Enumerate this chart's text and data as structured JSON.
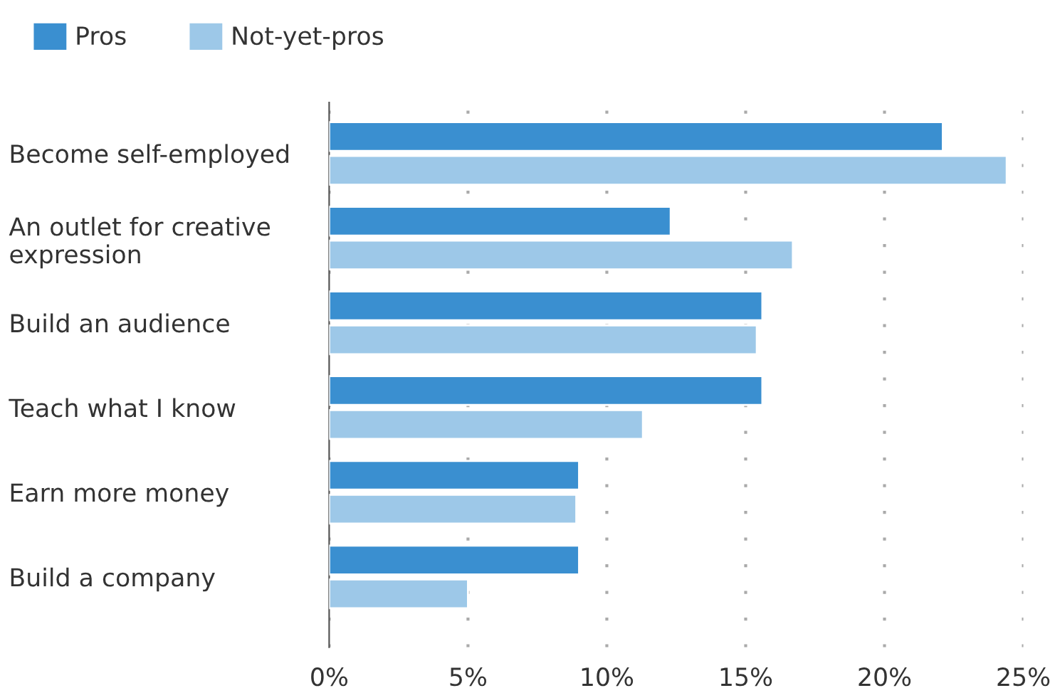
{
  "chart_data": {
    "type": "bar",
    "orientation": "horizontal",
    "categories": [
      "Become self-employed",
      "An outlet for creative\nexpression",
      "Build an audience",
      "Teach what I know",
      "Earn more money",
      "Build a company"
    ],
    "series": [
      {
        "name": "Pros",
        "color": "#3a8fd0",
        "values": [
          22.1,
          12.3,
          15.6,
          15.6,
          9.0,
          9.0
        ]
      },
      {
        "name": "Not-yet-pros",
        "color": "#9dc8e8",
        "values": [
          24.4,
          16.7,
          15.4,
          11.3,
          8.9,
          5.0
        ]
      }
    ],
    "xlim": [
      0,
      25
    ],
    "xticks": [
      {
        "value": 0,
        "label": "0%"
      },
      {
        "value": 5,
        "label": "5%"
      },
      {
        "value": 10,
        "label": "10%"
      },
      {
        "value": 15,
        "label": "15%"
      },
      {
        "value": 20,
        "label": "20%"
      },
      {
        "value": 25,
        "label": "25%"
      }
    ],
    "grid": "x",
    "legend": "top left"
  }
}
